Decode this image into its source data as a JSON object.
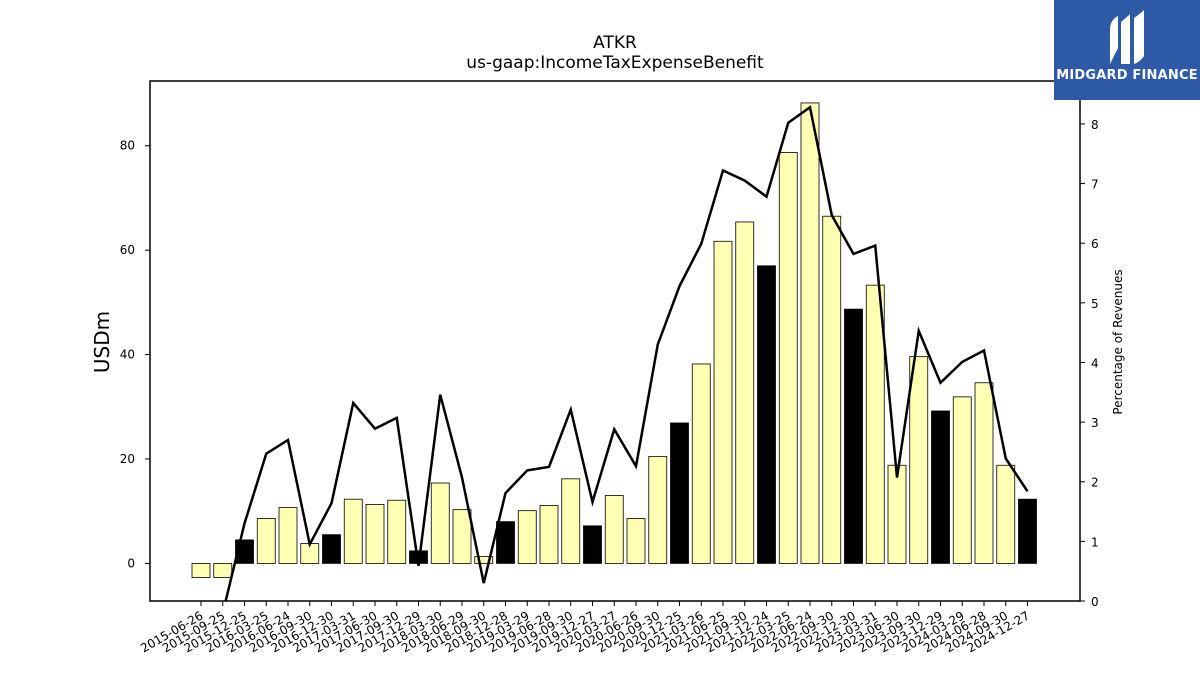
{
  "chart_data": {
    "type": "bar",
    "title": "ATKR",
    "subtitle": "us-gaap:IncomeTaxExpenseBenefit",
    "ylabel": "USDm",
    "y2label": "Percentage of Revenues",
    "ylim": [
      -7.2,
      92.4
    ],
    "y2lim": [
      0,
      8.72
    ],
    "yticks": [
      0,
      20,
      40,
      60,
      80
    ],
    "y2ticks": [
      0,
      1,
      2,
      3,
      4,
      5,
      6,
      7,
      8
    ],
    "categories": [
      "2015-06-26",
      "2015-09-25",
      "2015-12-25",
      "2016-03-25",
      "2016-06-24",
      "2016-09-30",
      "2016-12-30",
      "2017-03-31",
      "2017-06-30",
      "2017-09-30",
      "2017-12-29",
      "2018-03-30",
      "2018-06-29",
      "2018-09-30",
      "2018-12-28",
      "2019-03-29",
      "2019-06-28",
      "2019-09-30",
      "2019-12-27",
      "2020-03-27",
      "2020-06-26",
      "2020-09-30",
      "2020-12-25",
      "2021-03-26",
      "2021-06-25",
      "2021-09-30",
      "2021-12-24",
      "2022-03-25",
      "2022-06-24",
      "2022-09-30",
      "2022-12-30",
      "2023-03-31",
      "2023-06-30",
      "2023-09-30",
      "2023-12-29",
      "2024-03-29",
      "2024-06-28",
      "2024-09-30",
      "2024-12-27"
    ],
    "series": [
      {
        "type": "bar",
        "values": [
          -2.7,
          -2.7,
          4.5,
          8.6,
          10.7,
          3.8,
          5.5,
          12.3,
          11.3,
          12.1,
          2.4,
          15.4,
          10.3,
          1.3,
          8.0,
          10.1,
          11.1,
          16.2,
          7.2,
          13.0,
          8.6,
          20.5,
          26.9,
          38.2,
          61.7,
          65.4,
          57.0,
          78.7,
          88.2,
          66.5,
          48.7,
          53.3,
          18.8,
          39.6,
          29.2,
          31.9,
          34.6,
          18.8,
          12.3
        ],
        "highlight": [
          false,
          false,
          true,
          false,
          false,
          false,
          true,
          false,
          false,
          false,
          true,
          false,
          false,
          false,
          true,
          false,
          false,
          false,
          true,
          false,
          false,
          false,
          true,
          false,
          false,
          false,
          true,
          false,
          false,
          false,
          true,
          false,
          false,
          false,
          true,
          false,
          false,
          false,
          true
        ]
      },
      {
        "type": "line",
        "axis": "right",
        "values": [
          null,
          -0.2,
          1.3,
          2.47,
          2.7,
          0.95,
          1.64,
          3.32,
          2.89,
          3.07,
          0.59,
          3.46,
          2.07,
          0.3,
          1.81,
          2.19,
          2.25,
          3.21,
          1.66,
          2.88,
          2.26,
          4.3,
          5.28,
          5.99,
          7.22,
          7.05,
          6.78,
          8.02,
          8.28,
          6.47,
          5.82,
          5.96,
          2.07,
          4.53,
          3.66,
          4.01,
          4.2,
          2.39,
          1.84
        ]
      }
    ],
    "colors": {
      "bar_fill": "#ffffb3",
      "bar_highlight": "#000000",
      "bar_edge": "#000000",
      "line": "#000000"
    }
  },
  "logo": {
    "text": "MIDGARD FINANCE",
    "background": "#2f5aa8"
  }
}
